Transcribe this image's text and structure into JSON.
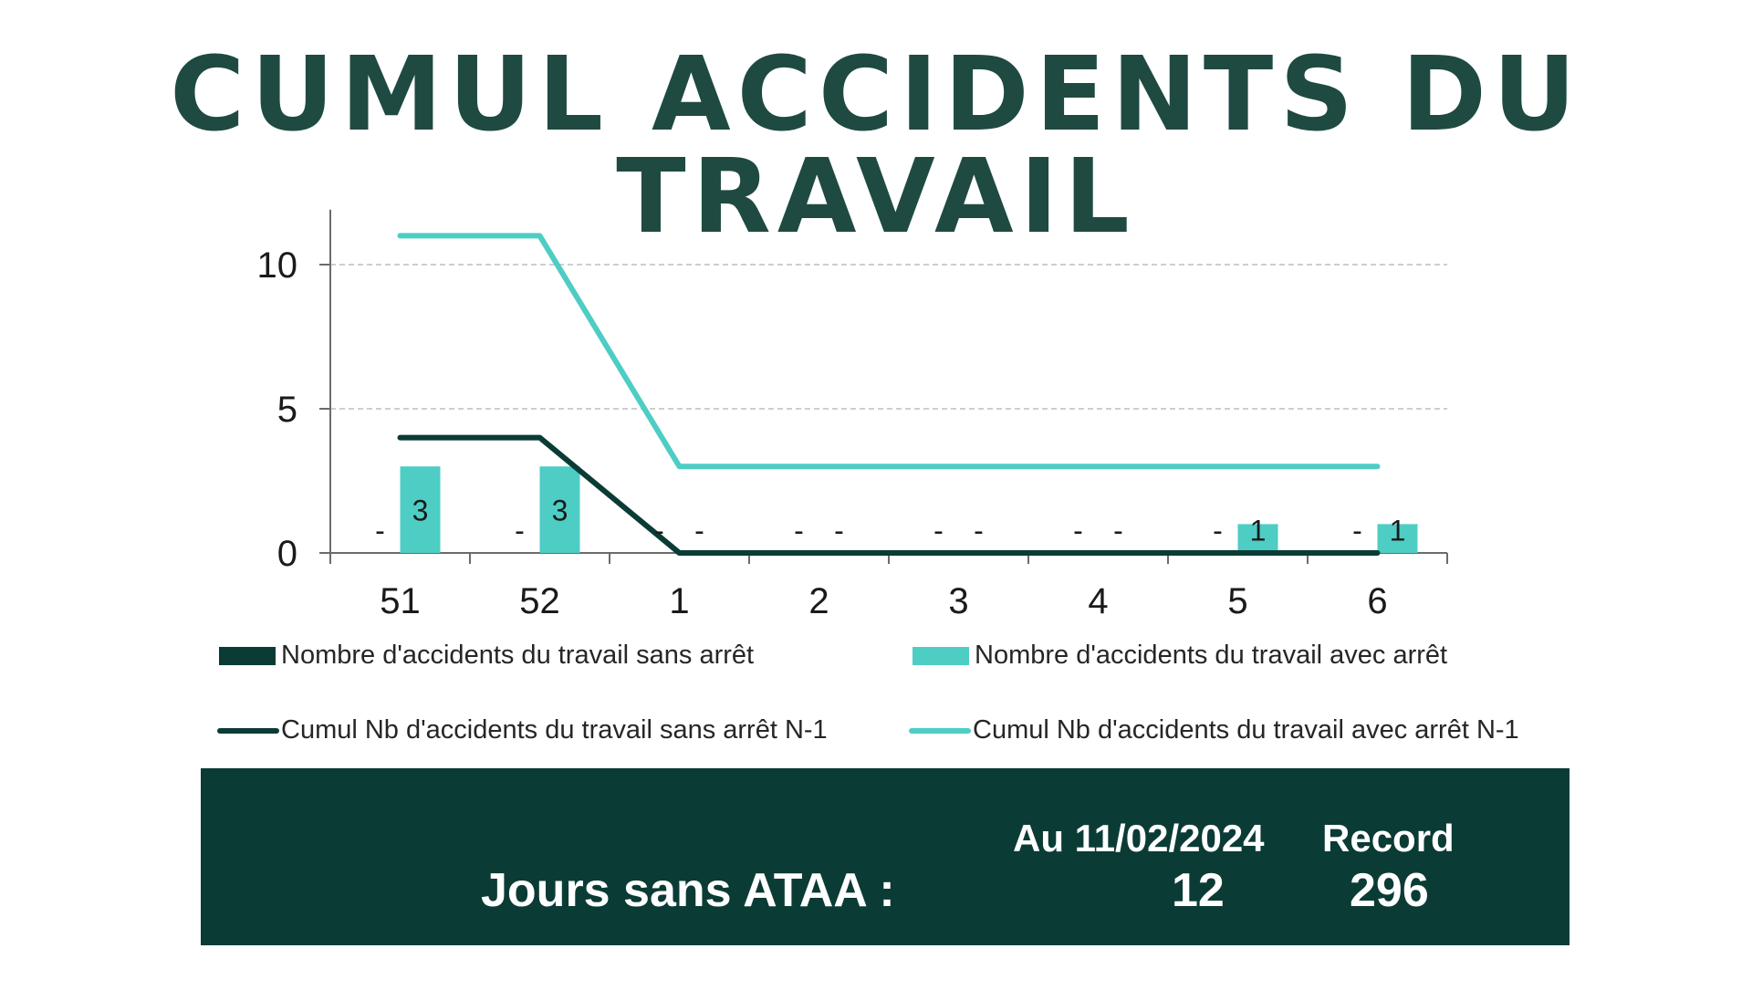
{
  "title": "CUMUL ACCIDENTS DU TRAVAIL",
  "colors": {
    "dark": "#0b3b35",
    "teal": "#4ecdc4",
    "title": "#1e4a42"
  },
  "chart_data": {
    "type": "bar",
    "categories": [
      "51",
      "52",
      "1",
      "2",
      "3",
      "4",
      "5",
      "6"
    ],
    "ylim": [
      0,
      12
    ],
    "yticks": [
      0,
      5,
      10
    ],
    "grid": true,
    "legend_placement": "bottom",
    "series": [
      {
        "name": "Nombre d'accidents du travail sans arrêt",
        "kind": "bar",
        "color": "#0b3b35",
        "values": [
          0,
          0,
          0,
          0,
          0,
          0,
          0,
          0
        ],
        "labels": [
          "-",
          "-",
          "-",
          "-",
          "-",
          "-",
          "-",
          "-"
        ]
      },
      {
        "name": "Nombre d'accidents du travail avec arrêt",
        "kind": "bar",
        "color": "#4ecdc4",
        "values": [
          3,
          3,
          0,
          0,
          0,
          0,
          1,
          1
        ],
        "labels": [
          "3",
          "3",
          "-",
          "-",
          "-",
          "-",
          "1",
          "1"
        ]
      },
      {
        "name": "Cumul Nb d'accidents du travail sans arrêt N-1",
        "kind": "line",
        "color": "#0b3b35",
        "values": [
          4,
          4,
          0,
          0,
          0,
          0,
          0,
          0
        ]
      },
      {
        "name": "Cumul Nb d'accidents du travail avec arrêt N-1",
        "kind": "line",
        "color": "#4ecdc4",
        "values": [
          11,
          11,
          3,
          3,
          3,
          3,
          3,
          3
        ]
      }
    ]
  },
  "banner": {
    "label": "Jours sans ATAA :",
    "date_header": "Au 11/02/2024",
    "record_header": "Record",
    "days": "12",
    "record": "296"
  }
}
